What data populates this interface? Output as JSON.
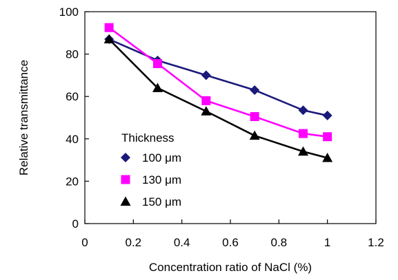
{
  "chart_data": {
    "type": "line",
    "xlabel": "Concentration ratio of NaCl (%)",
    "ylabel": "Relative  transmittance",
    "xlim": [
      0,
      1.2
    ],
    "ylim": [
      0,
      100
    ],
    "x_ticks": [
      "0",
      "0.2",
      "0.4",
      "0.6",
      "0.8",
      "1",
      "1.2"
    ],
    "y_ticks": [
      "0",
      "20",
      "40",
      "60",
      "80",
      "100"
    ],
    "grid": false,
    "legend": {
      "title": "Thickness",
      "placement": "bottom-left"
    },
    "series": [
      {
        "name": "100 μm",
        "color": "#1a1a7a",
        "marker": "diamond",
        "x": [
          0.1,
          0.3,
          0.5,
          0.7,
          0.9,
          1.0
        ],
        "y": [
          87,
          77,
          70,
          63,
          53.5,
          51
        ]
      },
      {
        "name": "130 μm",
        "color": "#ff00ff",
        "marker": "square",
        "x": [
          0.1,
          0.3,
          0.5,
          0.7,
          0.9,
          1.0
        ],
        "y": [
          92.5,
          75.5,
          58,
          50.5,
          42.5,
          41
        ]
      },
      {
        "name": "150 μm",
        "color": "#000000",
        "marker": "triangle",
        "x": [
          0.1,
          0.3,
          0.5,
          0.7,
          0.9,
          1.0
        ],
        "y": [
          87,
          64,
          53,
          41.5,
          34,
          31
        ]
      }
    ]
  }
}
